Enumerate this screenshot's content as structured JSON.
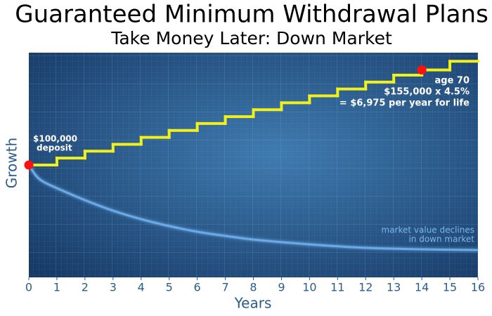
{
  "chart_data": {
    "type": "line",
    "title": "Guaranteed Minimum Withdrawal Plans",
    "subtitle": "Take Money Later: Down Market",
    "xlabel": "Years",
    "ylabel": "Growth",
    "xlim": [
      0,
      16
    ],
    "xticks": [
      0,
      1,
      2,
      3,
      4,
      5,
      6,
      7,
      8,
      9,
      10,
      11,
      12,
      13,
      14,
      15,
      16
    ],
    "ylim": [
      35000,
      165000
    ],
    "series": [
      {
        "color": "#f2f01a",
        "step": true,
        "x": [
          0,
          1,
          2,
          3,
          4,
          5,
          6,
          7,
          8,
          9,
          10,
          11,
          12,
          13,
          14,
          15
        ],
        "values": [
          100000,
          104000,
          108000,
          112000,
          116000,
          120000,
          124000,
          128000,
          132000,
          136000,
          140000,
          144000,
          148000,
          152000,
          155000,
          160000
        ]
      },
      {
        "color": "#6aaae6",
        "x": [
          0,
          0.25,
          0.5,
          1,
          2,
          3,
          4,
          5,
          6,
          7,
          8,
          10,
          12,
          14,
          16
        ],
        "values": [
          100000,
          94000,
          90500,
          86600,
          79700,
          73600,
          68700,
          64700,
          61400,
          59000,
          56900,
          54100,
          52100,
          51250,
          50800
        ]
      }
    ],
    "markers": {
      "color": "#ff1010",
      "x": [
        0,
        14
      ],
      "y": [
        100000,
        155000
      ]
    },
    "annotations": [
      {
        "lines": [
          "$100,000",
          "deposit"
        ]
      },
      {
        "lines": [
          "age 70",
          "$155,000 x 4.5%",
          "= $6,975 per year for life"
        ]
      },
      {
        "lines": [
          "market value declines",
          "in down market"
        ]
      }
    ]
  }
}
